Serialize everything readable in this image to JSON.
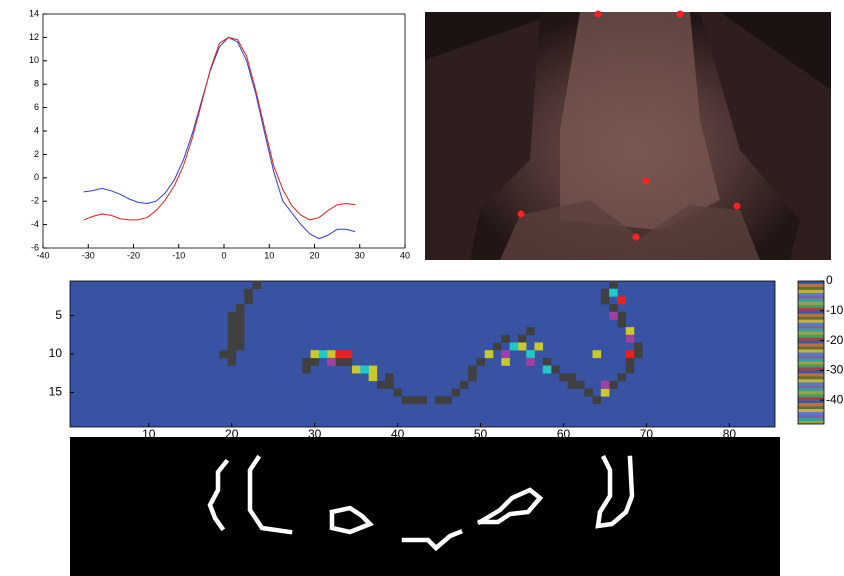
{
  "chart_data": [
    {
      "type": "line",
      "x": [
        -31,
        -29,
        -27,
        -25,
        -23,
        -21,
        -19,
        -17,
        -15,
        -13,
        -11,
        -9,
        -7,
        -5,
        -3,
        -1,
        1,
        3,
        5,
        7,
        9,
        11,
        13,
        15,
        17,
        19,
        21,
        23,
        25,
        27,
        29
      ],
      "series": [
        {
          "color": "#2f3fd0",
          "values": [
            -1.2,
            -1.1,
            -0.9,
            -1.1,
            -1.4,
            -1.8,
            -2.1,
            -2.2,
            -2.0,
            -1.3,
            -0.2,
            1.5,
            3.8,
            6.5,
            9.2,
            11.2,
            12.0,
            11.6,
            10.0,
            7.2,
            3.8,
            0.5,
            -2.0,
            -3.0,
            -4.0,
            -4.8,
            -5.2,
            -4.9,
            -4.4,
            -4.4,
            -4.6
          ]
        },
        {
          "color": "#e02020",
          "values": [
            -3.6,
            -3.3,
            -3.1,
            -3.2,
            -3.5,
            -3.6,
            -3.6,
            -3.4,
            -2.8,
            -1.9,
            -0.7,
            1.0,
            3.4,
            6.3,
            9.3,
            11.5,
            12.0,
            11.8,
            10.4,
            7.5,
            4.2,
            1.0,
            -1.0,
            -2.4,
            -3.2,
            -3.6,
            -3.4,
            -2.8,
            -2.3,
            -2.2,
            -2.3
          ]
        }
      ],
      "xlim": [
        -40,
        40
      ],
      "xticks": [
        -40,
        -30,
        -20,
        -10,
        0,
        10,
        20,
        30,
        40
      ],
      "ylim": [
        -6,
        14
      ],
      "yticks": [
        -6,
        -4,
        -2,
        0,
        2,
        4,
        6,
        8,
        10,
        12,
        14
      ]
    },
    {
      "type": "heatmap",
      "background": "#3853a4",
      "xlim": [
        0.5,
        85.5
      ],
      "xticks": [
        10,
        20,
        30,
        40,
        50,
        60,
        70,
        80
      ],
      "ylim": [
        0.5,
        19.5
      ],
      "yticks": [
        5,
        10,
        15
      ],
      "series": [
        {
          "color": "#404040",
          "x": [
            23,
            22,
            22,
            21,
            21,
            20,
            20,
            21,
            20,
            21,
            20,
            21,
            20,
            21,
            19,
            20,
            20,
            30,
            29,
            29,
            30,
            31,
            32,
            33,
            34,
            35,
            36,
            37,
            38,
            39,
            39,
            40,
            41,
            42,
            43,
            45,
            46,
            47,
            48,
            49,
            49,
            50,
            51,
            52,
            53,
            54,
            55,
            56,
            57,
            58,
            59,
            60,
            61,
            61,
            62,
            63,
            64,
            65,
            66,
            67,
            68,
            68,
            69,
            69,
            68,
            68,
            67,
            67,
            66,
            65,
            65,
            66
          ],
          "y": [
            1,
            2,
            3,
            4,
            5,
            5,
            6,
            6,
            7,
            7,
            8,
            8,
            9,
            9,
            10,
            10,
            11,
            10,
            11,
            12,
            11,
            10,
            10,
            11,
            11,
            12,
            12,
            13,
            14,
            13,
            14,
            15,
            16,
            16,
            16,
            16,
            16,
            15,
            14,
            13,
            12,
            11,
            10,
            9,
            8,
            9,
            8,
            7,
            9,
            11,
            12,
            13,
            13,
            14,
            14,
            15,
            16,
            15,
            14,
            13,
            12,
            11,
            10,
            9,
            8,
            7,
            6,
            5,
            4,
            3,
            2,
            1
          ]
        },
        {
          "color": "#c8c830",
          "x": [
            30,
            32,
            35,
            37,
            37,
            51,
            53,
            55,
            57,
            64,
            68,
            65
          ],
          "y": [
            10,
            10,
            12,
            13,
            12,
            10,
            11,
            9,
            9,
            10,
            7,
            15
          ]
        },
        {
          "color": "#20c8c8",
          "x": [
            31,
            36,
            54,
            56,
            66,
            58
          ],
          "y": [
            10,
            12,
            9,
            10,
            2,
            12
          ]
        },
        {
          "color": "#e82020",
          "x": [
            33,
            34,
            67,
            68
          ],
          "y": [
            10,
            10,
            3,
            10
          ]
        },
        {
          "color": "#a040a0",
          "x": [
            32,
            53,
            56,
            66,
            68,
            65
          ],
          "y": [
            11,
            10,
            11,
            5,
            8,
            14
          ]
        }
      ],
      "colorbar_lim": [
        -48,
        0
      ],
      "colorbar_ticks": [
        0,
        -10,
        -20,
        -30,
        -40
      ]
    }
  ]
}
